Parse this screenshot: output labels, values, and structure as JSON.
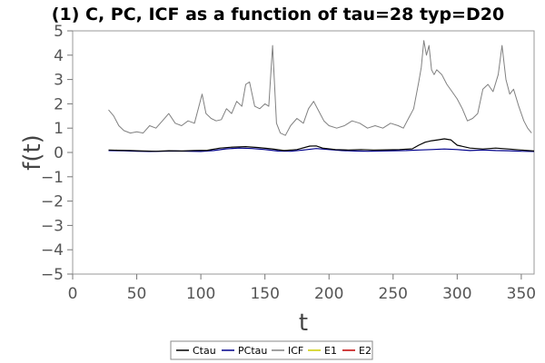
{
  "chart_data": {
    "type": "line",
    "title": "(1) C, PC, ICF as a function of tau=28 typ=D20",
    "xlabel": "t",
    "ylabel": "f(t)",
    "xlim": [
      0,
      360
    ],
    "ylim": [
      -5,
      5
    ],
    "xticks": [
      "0",
      "50",
      "100",
      "150",
      "200",
      "250",
      "300",
      "350"
    ],
    "yticks": [
      "5",
      "4",
      "3",
      "2",
      "1",
      "0",
      "−1",
      "−2",
      "−3",
      "−4",
      "−5"
    ],
    "grid": false,
    "legend_position": "bottom",
    "series": [
      {
        "name": "Ctau",
        "color": "#000000",
        "x": [
          28,
          35,
          45,
          55,
          65,
          75,
          85,
          95,
          105,
          115,
          125,
          135,
          145,
          155,
          165,
          175,
          185,
          190,
          195,
          205,
          215,
          225,
          235,
          245,
          255,
          265,
          270,
          275,
          280,
          285,
          290,
          295,
          300,
          310,
          320,
          330,
          340,
          350,
          360
        ],
        "y": [
          0.1,
          0.09,
          0.08,
          0.06,
          0.05,
          0.07,
          0.06,
          0.08,
          0.09,
          0.18,
          0.22,
          0.24,
          0.2,
          0.15,
          0.08,
          0.12,
          0.26,
          0.27,
          0.18,
          0.12,
          0.1,
          0.12,
          0.1,
          0.11,
          0.12,
          0.15,
          0.3,
          0.42,
          0.48,
          0.52,
          0.56,
          0.52,
          0.3,
          0.18,
          0.14,
          0.18,
          0.14,
          0.1,
          0.06
        ]
      },
      {
        "name": "PCtau",
        "color": "#00008b",
        "x": [
          28,
          40,
          50,
          60,
          70,
          80,
          90,
          100,
          110,
          120,
          130,
          140,
          150,
          160,
          170,
          180,
          190,
          200,
          210,
          220,
          230,
          240,
          250,
          260,
          270,
          280,
          290,
          300,
          310,
          320,
          330,
          340,
          350,
          360
        ],
        "y": [
          0.08,
          0.07,
          0.05,
          0.04,
          0.05,
          0.06,
          0.05,
          0.04,
          0.08,
          0.15,
          0.18,
          0.16,
          0.12,
          0.06,
          0.05,
          0.1,
          0.16,
          0.12,
          0.08,
          0.06,
          0.05,
          0.06,
          0.07,
          0.08,
          0.1,
          0.12,
          0.14,
          0.12,
          0.08,
          0.1,
          0.08,
          0.07,
          0.05,
          0.04
        ]
      },
      {
        "name": "ICF",
        "color": "#808080",
        "x": [
          28,
          32,
          36,
          40,
          45,
          50,
          55,
          60,
          65,
          70,
          75,
          80,
          85,
          90,
          95,
          98,
          101,
          104,
          108,
          112,
          116,
          120,
          124,
          128,
          132,
          135,
          138,
          142,
          146,
          150,
          153,
          156,
          159,
          162,
          166,
          170,
          175,
          180,
          184,
          188,
          192,
          196,
          200,
          206,
          212,
          218,
          224,
          230,
          236,
          242,
          248,
          254,
          258,
          262,
          266,
          270,
          272,
          274,
          276,
          278,
          280,
          282,
          284,
          288,
          292,
          296,
          300,
          304,
          308,
          312,
          316,
          320,
          324,
          328,
          332,
          335,
          338,
          341,
          344,
          348,
          352,
          355,
          358
        ],
        "y": [
          1.75,
          1.5,
          1.1,
          0.9,
          0.8,
          0.85,
          0.8,
          1.1,
          1.0,
          1.3,
          1.6,
          1.2,
          1.1,
          1.3,
          1.2,
          1.8,
          2.4,
          1.6,
          1.4,
          1.3,
          1.35,
          1.8,
          1.6,
          2.1,
          1.9,
          2.8,
          2.9,
          1.9,
          1.8,
          2.0,
          1.9,
          4.4,
          1.2,
          0.8,
          0.7,
          1.1,
          1.4,
          1.2,
          1.8,
          2.1,
          1.7,
          1.3,
          1.1,
          1.0,
          1.1,
          1.3,
          1.2,
          1.0,
          1.1,
          1.0,
          1.2,
          1.1,
          1.0,
          1.4,
          1.8,
          2.9,
          3.5,
          4.6,
          4.0,
          4.4,
          3.4,
          3.2,
          3.4,
          3.2,
          2.8,
          2.5,
          2.2,
          1.8,
          1.3,
          1.4,
          1.6,
          2.6,
          2.8,
          2.5,
          3.2,
          4.4,
          3.0,
          2.4,
          2.6,
          1.9,
          1.3,
          1.0,
          0.8
        ]
      },
      {
        "name": "E1",
        "color": "#cccc00",
        "x": [],
        "y": []
      },
      {
        "name": "E2",
        "color": "#c00000",
        "x": [],
        "y": []
      }
    ]
  }
}
